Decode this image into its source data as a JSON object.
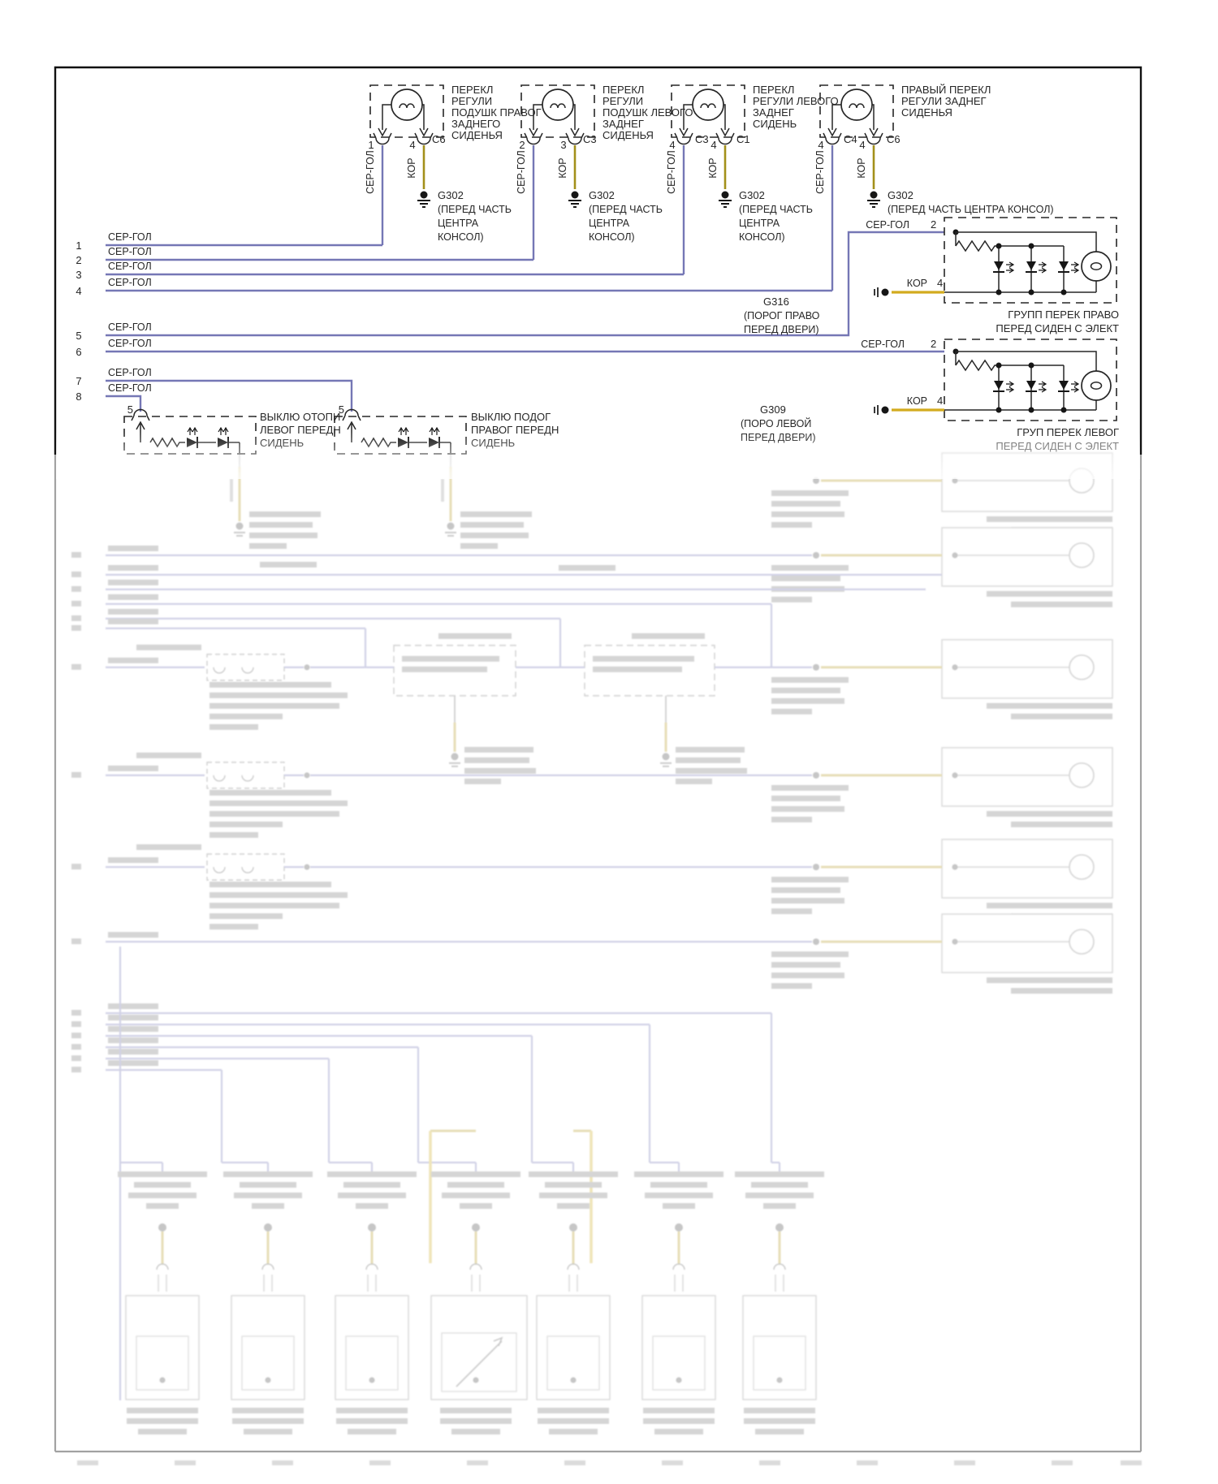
{
  "top_switches": [
    {
      "title_lines": [
        "ПЕРЕКЛ",
        "РЕГУЛИ",
        "ПОДУШК ПРАВОГ",
        "ЗАДНЕГО",
        "СИДЕНЬЯ"
      ],
      "pin_left": "1",
      "pin_right": "4",
      "conn_right": "C6",
      "wire_left": "СЕР-ГОЛ",
      "wire_right": "КОР",
      "ground_code": "G302",
      "ground_lines": [
        "(ПЕРЕД ЧАСТЬ",
        "ЦЕНТРА",
        "КОНСОЛ)"
      ]
    },
    {
      "title_lines": [
        "ПЕРЕКЛ",
        "РЕГУЛИ",
        "ПОДУШК ЛЕВОГО",
        "ЗАДНЕГ",
        "СИДЕНЬЯ"
      ],
      "pin_left": "2",
      "pin_right": "3",
      "conn_right": "C3",
      "wire_left": "СЕР-ГОЛ",
      "wire_right": "КОР",
      "ground_code": "G302",
      "ground_lines": [
        "(ПЕРЕД ЧАСТЬ",
        "ЦЕНТРА",
        "КОНСОЛ)"
      ]
    },
    {
      "title_lines": [
        "ПЕРЕКЛ",
        "РЕГУЛИ ЛЕВОГО",
        "ЗАДНЕГ",
        "СИДЕНЬ"
      ],
      "pin_left": "4",
      "conn_left": "C3",
      "pin_right": "4",
      "conn_right": "C1",
      "wire_left": "СЕР-ГОЛ",
      "wire_right": "КОР",
      "ground_code": "G302",
      "ground_lines": [
        "(ПЕРЕД ЧАСТЬ",
        "ЦЕНТРА",
        "КОНСОЛ)"
      ]
    },
    {
      "title_lines": [
        "ПРАВЫЙ ПЕРЕКЛ",
        "РЕГУЛИ ЗАДНЕГ",
        "СИДЕНЬЯ"
      ],
      "pin_left": "4",
      "conn_left": "C4",
      "pin_right": "4",
      "conn_right": "C6",
      "wire_left": "СЕР-ГОЛ",
      "wire_right": "КОР",
      "ground_code": "G302",
      "ground_lines": [
        "(ПЕРЕД ЧАСТЬ ЦЕНТРА КОНСОЛ)"
      ]
    }
  ],
  "left_rows": [
    {
      "num": "1",
      "wire": "СЕР-ГОЛ"
    },
    {
      "num": "2",
      "wire": "СЕР-ГОЛ"
    },
    {
      "num": "3",
      "wire": "СЕР-ГОЛ"
    },
    {
      "num": "4",
      "wire": "СЕР-ГОЛ"
    },
    {
      "num": "5",
      "wire": "СЕР-ГОЛ"
    },
    {
      "num": "6",
      "wire": "СЕР-ГОЛ"
    },
    {
      "num": "7",
      "wire": "СЕР-ГОЛ"
    },
    {
      "num": "8",
      "wire": "СЕР-ГОЛ"
    }
  ],
  "right_groups": {
    "feed1_wire": "СЕР-ГОЛ",
    "feed1_pin": "2",
    "g316_code": "G316",
    "g316_lines": [
      "(ПОРОГ ПРАВО",
      "ПЕРЕД ДВЕРИ)"
    ],
    "kor1": "КОР",
    "kor1_pin": "4",
    "caption1": [
      "ГРУПП ПЕРЕК ПРАВО",
      "ПЕРЕД СИДЕН С ЭЛЕКТ"
    ],
    "feed2_wire": "СЕР-ГОЛ",
    "feed2_pin": "2",
    "g309_code": "G309",
    "g309_lines": [
      "(ПОРО ЛЕВОЙ",
      "ПЕРЕД ДВЕРИ)"
    ],
    "kor2": "КОР",
    "kor2_pin": "4",
    "caption2": [
      "ГРУП ПЕРЕК ЛЕВОГ",
      "ПЕРЕД СИДЕН С ЭЛЕКТ"
    ]
  },
  "heater_switches": [
    {
      "pin": "5",
      "title_lines": [
        "ВЫКЛЮ ОТОПИ",
        "ЛЕВОГ ПЕРЕДН",
        "СИДЕНЬ"
      ]
    },
    {
      "pin": "5",
      "title_lines": [
        "ВЫКЛЮ ПОДОГ",
        "ПРАВОГ ПЕРЕДН",
        "СИДЕНЬ"
      ]
    }
  ],
  "colors": {
    "wire_blue": "#7577b5",
    "wire_brown": "#a3901a",
    "wire_gold": "#d2ab1e",
    "ink": "#262626"
  }
}
